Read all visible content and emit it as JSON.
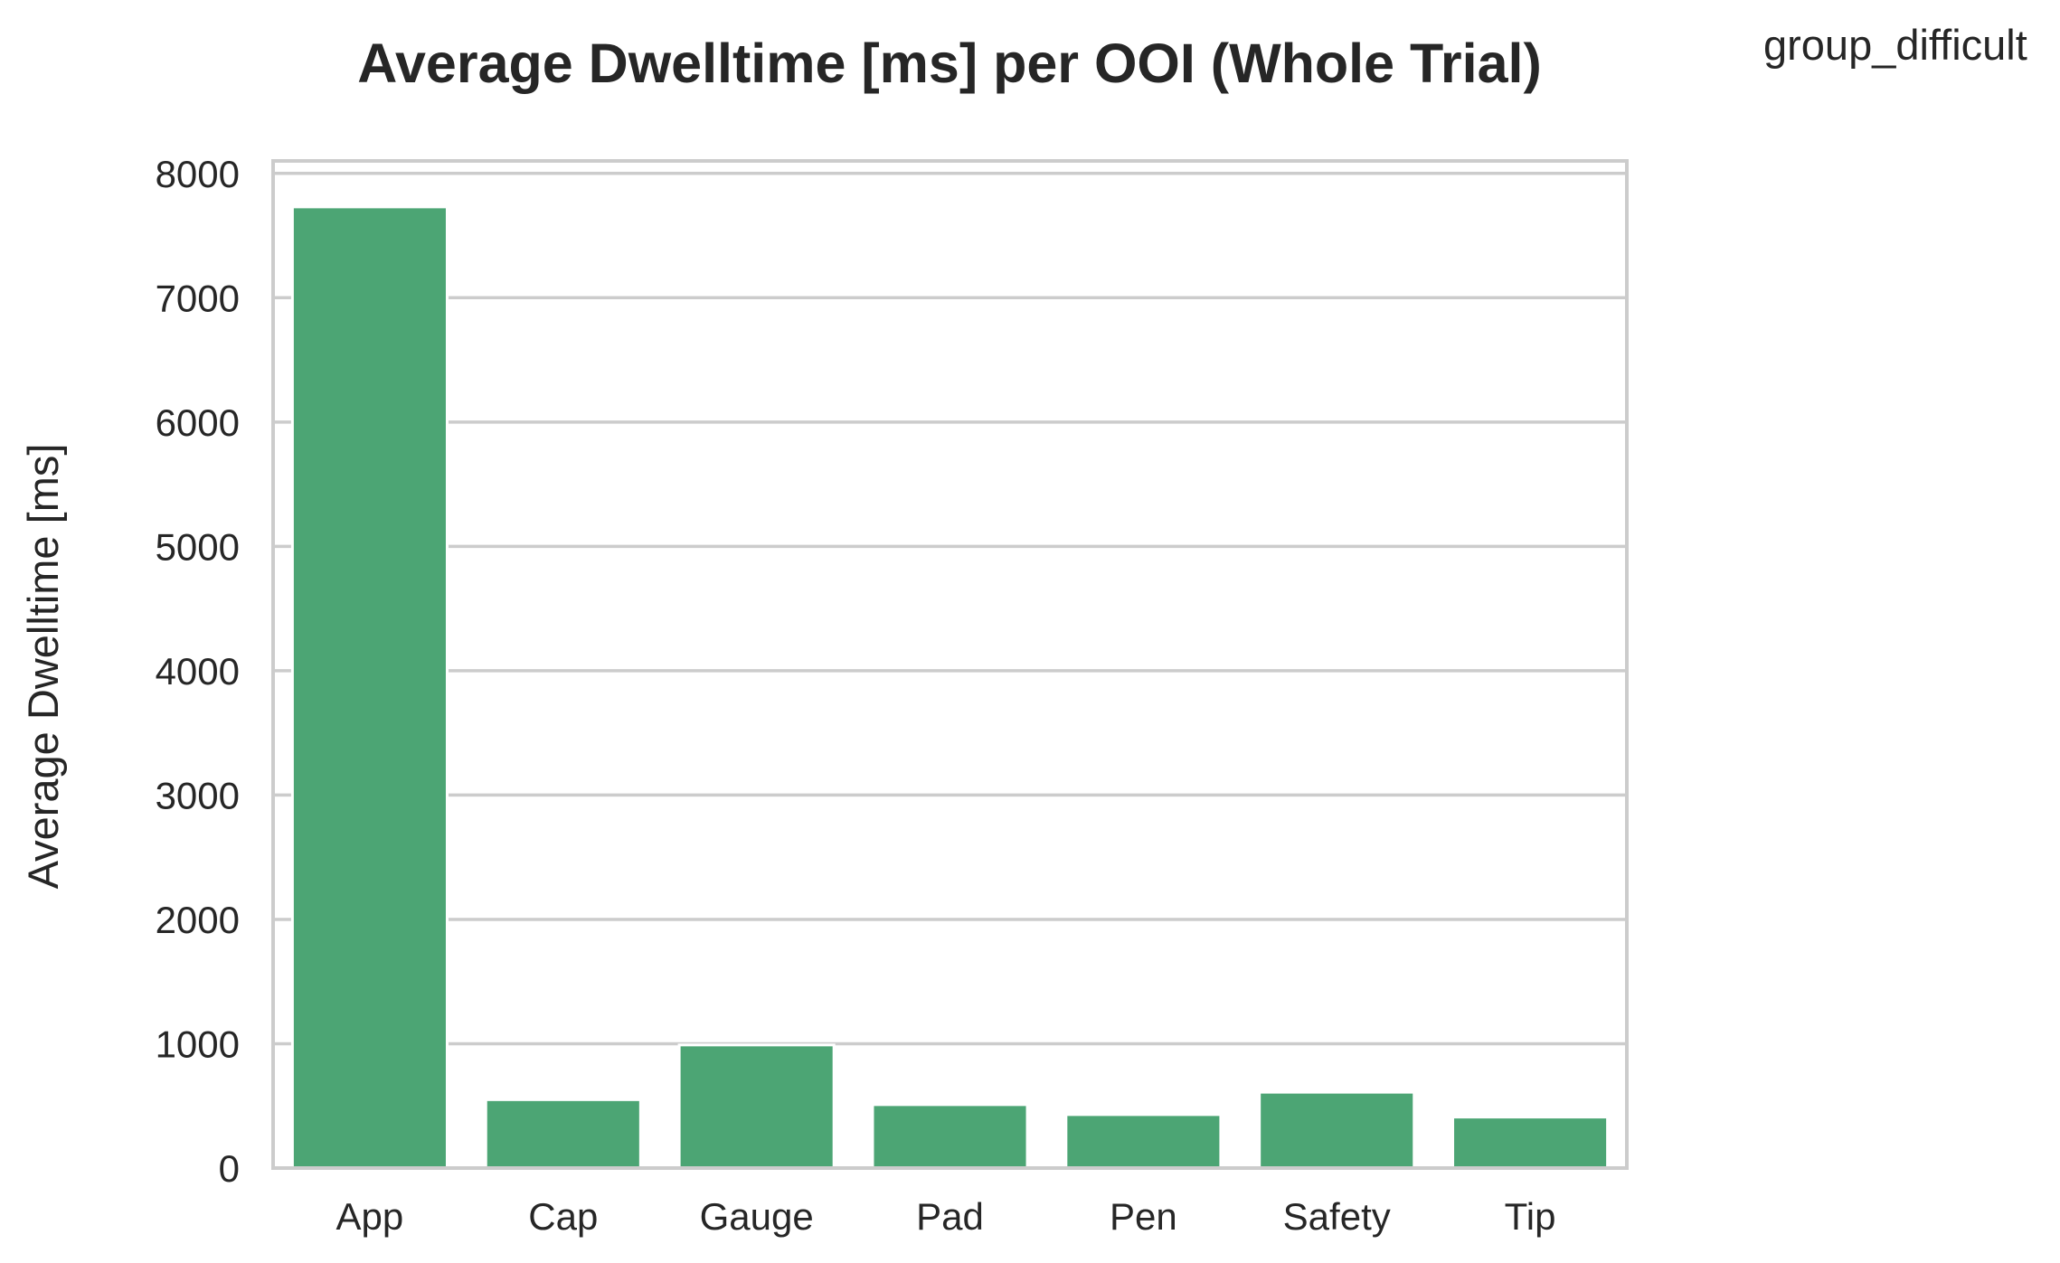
{
  "chart_data": {
    "type": "bar",
    "title": "Average Dwelltime [ms] per OOI (Whole Trial)",
    "corner_label": "group_difficult",
    "xlabel": "",
    "ylabel": "Average Dwelltime [ms]",
    "categories": [
      "App",
      "Cap",
      "Gauge",
      "Pad",
      "Pen",
      "Safety",
      "Tip"
    ],
    "values": [
      7730,
      550,
      990,
      510,
      430,
      610,
      410
    ],
    "ylim": [
      0,
      8100
    ],
    "yticks": [
      0,
      1000,
      2000,
      3000,
      4000,
      5000,
      6000,
      7000,
      8000
    ],
    "ytick_labels": [
      "0",
      "1000",
      "2000",
      "3000",
      "4000",
      "5000",
      "6000",
      "7000",
      "8000"
    ],
    "grid": true,
    "bar_color": "#4ca574",
    "grid_color": "#cccccc",
    "text_color": "#262626"
  }
}
